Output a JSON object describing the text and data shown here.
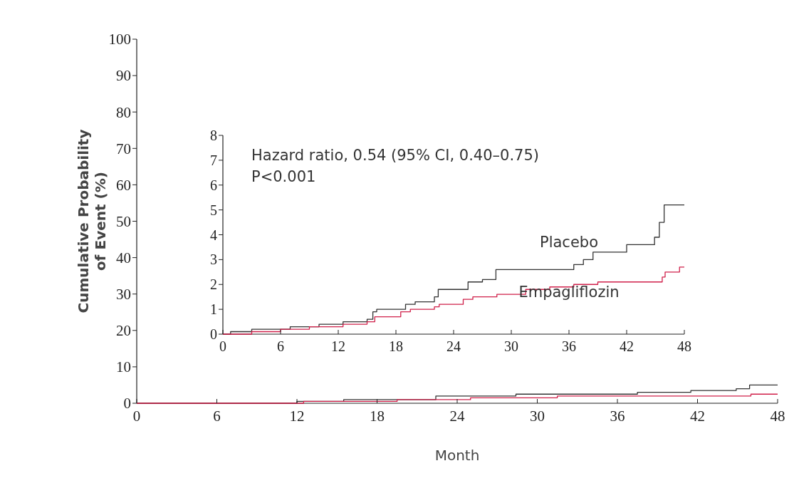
{
  "chart_data": [
    {
      "type": "step",
      "xlabel": "Month",
      "ylabel": "Cumulative Probability\nof Event (%)",
      "xlim": [
        0,
        48
      ],
      "ylim": [
        0,
        100
      ],
      "xticks": [
        0,
        6,
        12,
        18,
        24,
        30,
        36,
        42,
        48
      ],
      "yticks": [
        0,
        10,
        20,
        30,
        40,
        50,
        60,
        70,
        80,
        90,
        100
      ],
      "series": [
        {
          "color": "#333333",
          "x": [
            0,
            12,
            15.5,
            22.4,
            28.4,
            37.5,
            41.5,
            44.9,
            45.9,
            48
          ],
          "values": [
            0,
            0.5,
            1,
            2,
            2.5,
            3,
            3.5,
            4,
            5,
            5
          ]
        },
        {
          "color": "#d0204a",
          "x": [
            0,
            12.5,
            19.5,
            25,
            31.5,
            36.5,
            46,
            48
          ],
          "values": [
            0,
            0.5,
            1,
            1.5,
            2,
            2,
            2.5,
            2.5
          ]
        }
      ]
    },
    {
      "type": "step",
      "xlim": [
        0,
        48
      ],
      "ylim": [
        0,
        8
      ],
      "xticks": [
        0,
        6,
        12,
        18,
        24,
        30,
        36,
        42,
        48
      ],
      "yticks": [
        0,
        1,
        2,
        3,
        4,
        5,
        6,
        7,
        8
      ],
      "annotations": [
        "Hazard ratio, 0.54 (95% CI, 0.40–0.75)",
        "P<0.001"
      ],
      "series": [
        {
          "name": "Placebo",
          "color": "#333333",
          "x": [
            0,
            0.8,
            3,
            7,
            10,
            12.5,
            15,
            15.6,
            16,
            19,
            20,
            22,
            22.4,
            25.5,
            27,
            28.4,
            36.5,
            37.5,
            38.5,
            42,
            44.9,
            45.4,
            45.9,
            48
          ],
          "values": [
            0,
            0.1,
            0.2,
            0.3,
            0.4,
            0.5,
            0.6,
            0.9,
            1.0,
            1.2,
            1.3,
            1.5,
            1.8,
            2.1,
            2.2,
            2.6,
            2.8,
            3.0,
            3.3,
            3.6,
            3.9,
            4.5,
            5.2,
            5.2
          ]
        },
        {
          "name": "Empagliflozin",
          "color": "#d0204a",
          "x": [
            0,
            3,
            6,
            9,
            12.5,
            15,
            15.8,
            18.5,
            19.5,
            22,
            22.5,
            25,
            26,
            28.5,
            31.5,
            34,
            36.5,
            39,
            45.7,
            46,
            47.5,
            48
          ],
          "values": [
            0,
            0.1,
            0.2,
            0.3,
            0.4,
            0.5,
            0.7,
            0.9,
            1.0,
            1.1,
            1.2,
            1.4,
            1.5,
            1.6,
            1.8,
            1.9,
            2.0,
            2.1,
            2.3,
            2.5,
            2.7,
            2.7
          ]
        }
      ]
    }
  ]
}
